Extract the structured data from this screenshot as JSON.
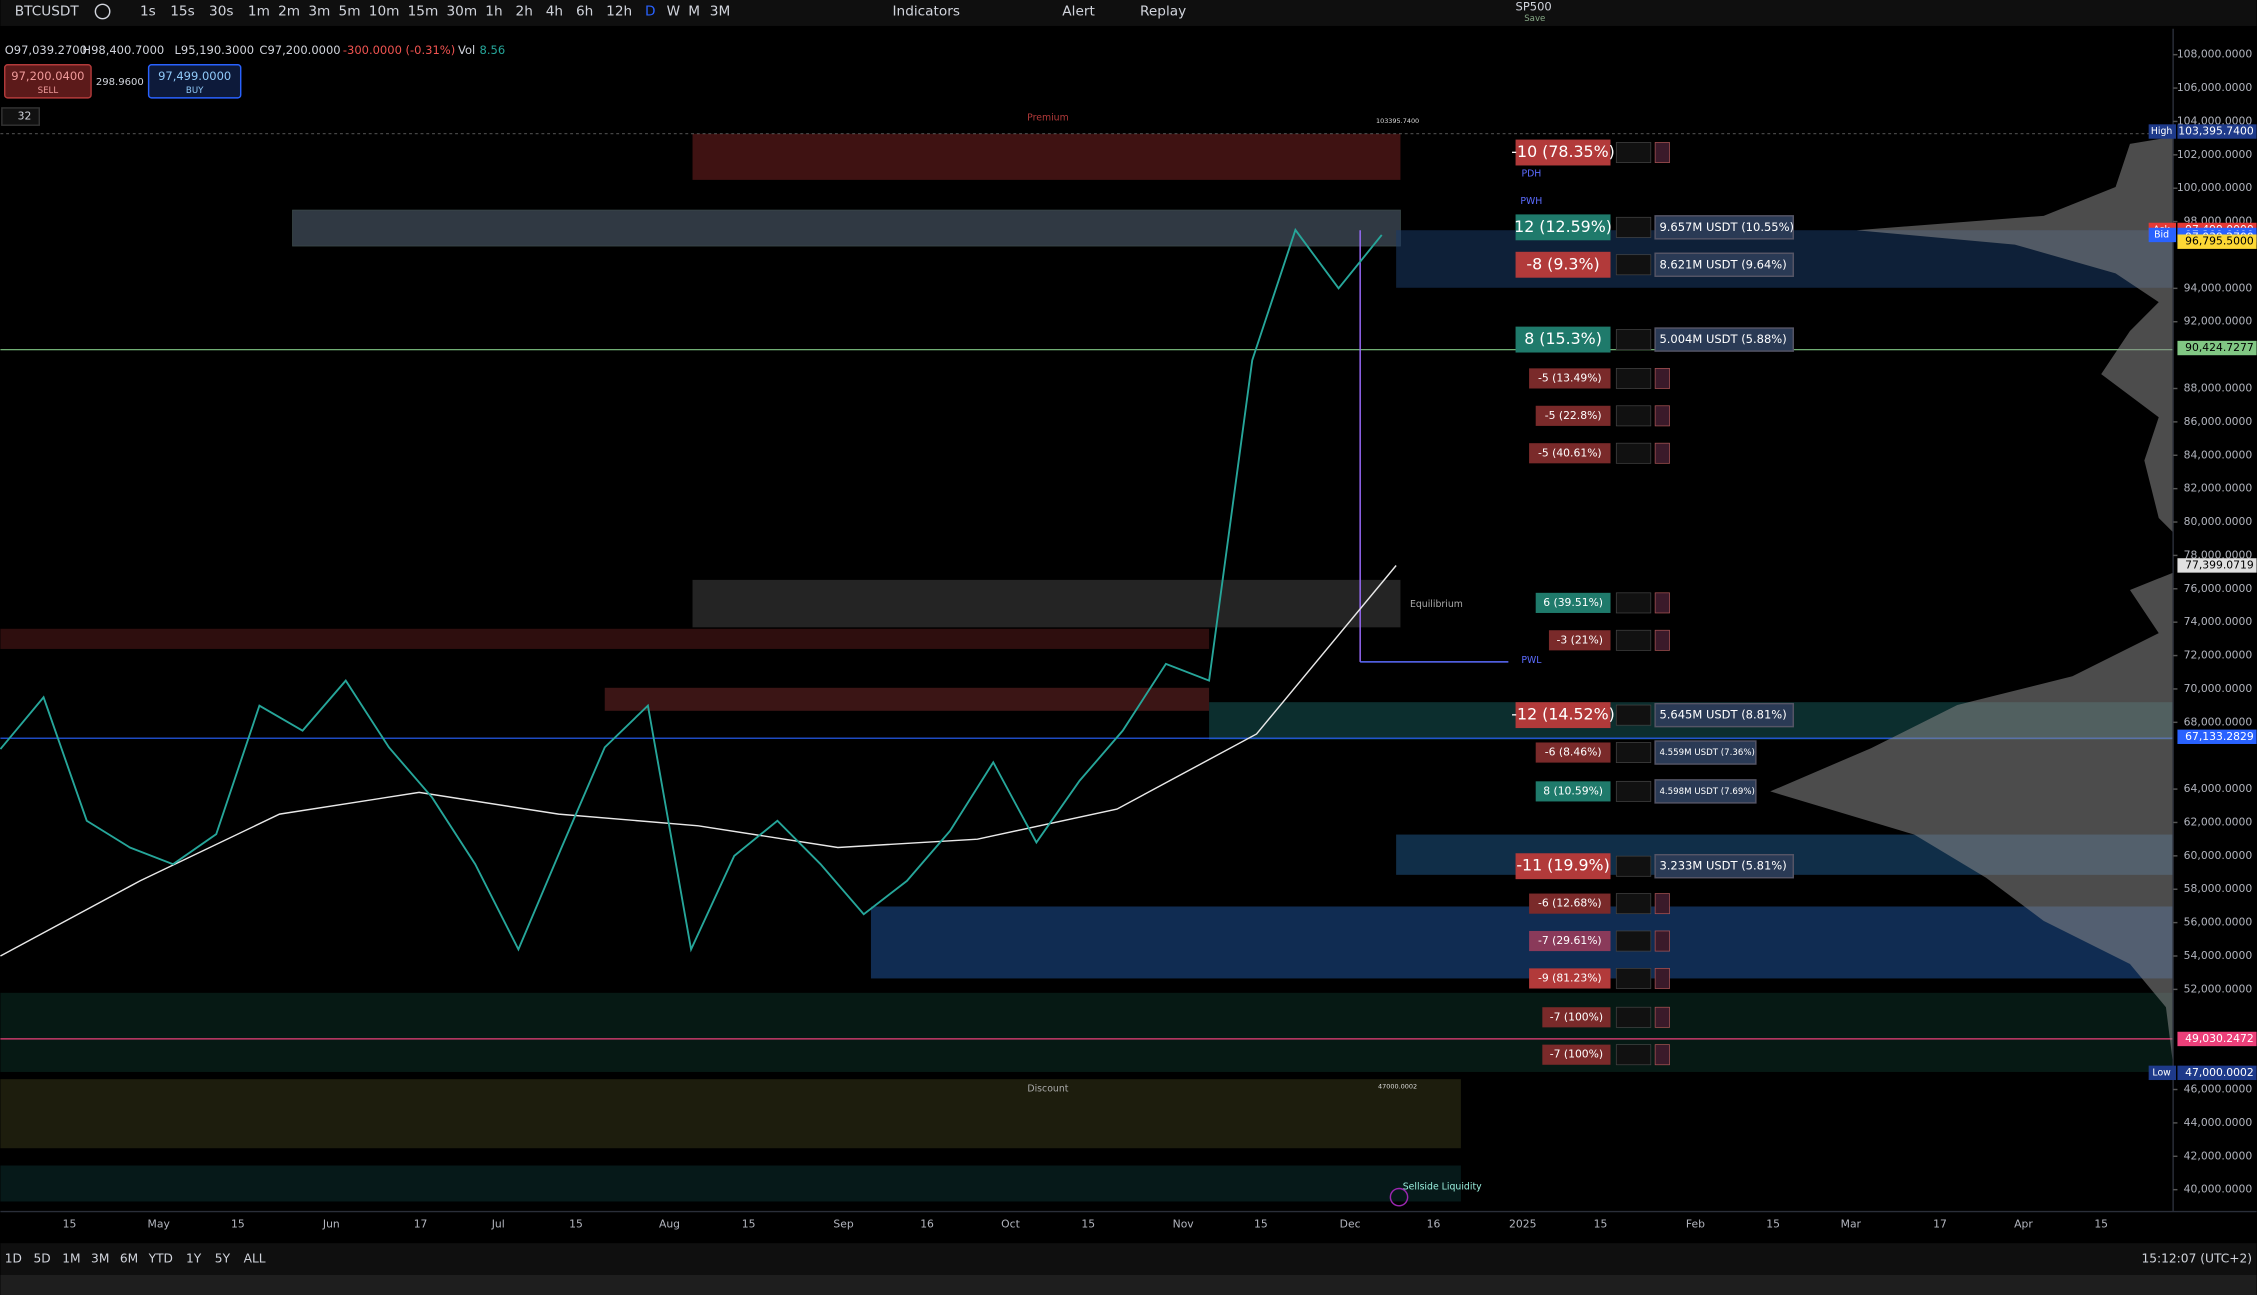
{
  "toolbar": {
    "symbol": "BTCUSDT",
    "intervals": [
      "1s",
      "15s",
      "30s",
      "1m",
      "2m",
      "3m",
      "5m",
      "10m",
      "15m",
      "30m",
      "1h",
      "2h",
      "4h",
      "6h",
      "12h",
      "D",
      "W",
      "M",
      "3M"
    ],
    "indicators": "Indicators",
    "alert": "Alert",
    "replay": "Replay",
    "compare_symbol": "SP500",
    "save": "Save"
  },
  "legend": {
    "open": "O97,039.2700",
    "high": "H98,400.7000",
    "low": "L95,190.3000",
    "close": "C97,200.0000",
    "change": "-300.0000 (-0.31%)",
    "volume_label": "Vol",
    "volume": "8.56"
  },
  "order": {
    "sell_price": "97,200.0400",
    "sell": "SELL",
    "spread": "298.9600",
    "buy_price": "97,499.0000",
    "buy": "BUY"
  },
  "indicator_count": "32",
  "chart_data": {
    "type": "line",
    "ylim": [
      39000,
      109000
    ],
    "yticks": [
      {
        "value": 108000,
        "label": "108,000.0000"
      },
      {
        "value": 106000,
        "label": "106,000.0000"
      },
      {
        "value": 104000,
        "label": "104,000.0000"
      },
      {
        "value": 102000,
        "label": "102,000.0000"
      },
      {
        "value": 100000,
        "label": "100,000.0000"
      },
      {
        "value": 98000,
        "label": "98,000.0000"
      },
      {
        "value": 94000,
        "label": "94,000.0000"
      },
      {
        "value": 92000,
        "label": "92,000.0000"
      },
      {
        "value": 88000,
        "label": "88,000.0000"
      },
      {
        "value": 86000,
        "label": "86,000.0000"
      },
      {
        "value": 84000,
        "label": "84,000.0000"
      },
      {
        "value": 82000,
        "label": "82,000.0000"
      },
      {
        "value": 80000,
        "label": "80,000.0000"
      },
      {
        "value": 78000,
        "label": "78,000.0000"
      },
      {
        "value": 76000,
        "label": "76,000.0000"
      },
      {
        "value": 74000,
        "label": "74,000.0000"
      },
      {
        "value": 72000,
        "label": "72,000.0000"
      },
      {
        "value": 70000,
        "label": "70,000.0000"
      },
      {
        "value": 68000,
        "label": "68,000.0000"
      },
      {
        "value": 64000,
        "label": "64,000.0000"
      },
      {
        "value": 62000,
        "label": "62,000.0000"
      },
      {
        "value": 60000,
        "label": "60,000.0000"
      },
      {
        "value": 58000,
        "label": "58,000.0000"
      },
      {
        "value": 56000,
        "label": "56,000.0000"
      },
      {
        "value": 54000,
        "label": "54,000.0000"
      },
      {
        "value": 52000,
        "label": "52,000.0000"
      },
      {
        "value": 46000,
        "label": "46,000.0000"
      },
      {
        "value": 44000,
        "label": "44,000.0000"
      },
      {
        "value": 42000,
        "label": "42,000.0000"
      },
      {
        "value": 40000,
        "label": "40,000.0000"
      }
    ],
    "series": [
      {
        "name": "BTCUSDT",
        "color": "#26a69a",
        "values": [
          66400,
          69500,
          62100,
          60500,
          59500,
          61300,
          69000,
          67500,
          70500,
          66500,
          63500,
          59500,
          54400,
          60500,
          66500,
          69000,
          54400,
          60000,
          62100,
          59500,
          56500,
          58500,
          61500,
          65600,
          60800,
          64500,
          67500,
          71500,
          70500,
          89700,
          97500,
          94000,
          97200
        ]
      }
    ],
    "overlays": [
      {
        "color": "#e8e8e8",
        "values": [
          54000,
          58500,
          62500,
          63800,
          62500,
          61800,
          60500,
          61000,
          62800,
          67300,
          77400
        ]
      }
    ],
    "price_labels": [
      {
        "value": 103395.74,
        "tag": "High",
        "label": "103,395.7400",
        "color": "#1e3a8a"
      },
      {
        "value": 97499,
        "tag": "Ask",
        "label": "97,499.0000",
        "color": "#e53935"
      },
      {
        "value": 97200.04,
        "tag": "Bid",
        "label": "97,200.0400",
        "color": "#2962ff"
      },
      {
        "value": 97039.27,
        "label": "97,039.2700",
        "color": "#2962ff"
      },
      {
        "value": 96795.5,
        "label": "96,795.5000",
        "color": "#fdd835"
      },
      {
        "value": 90424.7277,
        "label": "90,424.7277",
        "color": "#81c784"
      },
      {
        "value": 77399.0719,
        "label": "77,399.0719",
        "color": "#e0e0e0"
      },
      {
        "value": 67133.2829,
        "label": "67,133.2829",
        "color": "#2962ff"
      },
      {
        "value": 49030.2472,
        "label": "49,030.2472",
        "color": "#ec407a"
      },
      {
        "value": 47000.0002,
        "tag": "Low",
        "label": "47,000.0002",
        "color": "#1e3a8a"
      }
    ]
  },
  "time_axis": [
    "15",
    "May",
    "15",
    "Jun",
    "17",
    "Jul",
    "15",
    "Aug",
    "15",
    "Sep",
    "16",
    "Oct",
    "15",
    "Nov",
    "15",
    "Dec",
    "16",
    "2025",
    "15",
    "Feb",
    "15",
    "Mar",
    "17",
    "Apr",
    "15"
  ],
  "positions": [
    {
      "label": "-10 (78.35%)",
      "color": "#b23a3a",
      "big": true
    },
    {
      "label": "12 (12.59%)",
      "volume": "9.657M USDT (10.55%)",
      "color": "#1f7a6b",
      "big": true
    },
    {
      "label": "-8 (9.3%)",
      "volume": "8.621M USDT (9.64%)",
      "color": "#b23a3a",
      "big": true
    },
    {
      "label": "8 (15.3%)",
      "volume": "5.004M USDT (5.88%)",
      "color": "#1f7a6b",
      "big": true
    },
    {
      "label": "-5 (13.49%)",
      "color": "#7a2a2a"
    },
    {
      "label": "-5 (22.8%)",
      "color": "#7a2a2a"
    },
    {
      "label": "-5 (40.61%)",
      "color": "#7a2a2a"
    },
    {
      "label": "6 (39.51%)",
      "color": "#1f7a6b"
    },
    {
      "label": "-3 (21%)",
      "color": "#7a2a2a"
    },
    {
      "label": "-12 (14.52%)",
      "volume": "5.645M USDT (8.81%)",
      "color": "#b23a3a",
      "big": true
    },
    {
      "label": "-6 (8.46%)",
      "volume": "4.559M USDT (7.36%)",
      "color": "#7a2a2a"
    },
    {
      "label": "8 (10.59%)",
      "volume": "4.598M USDT (7.69%)",
      "color": "#1f7a6b"
    },
    {
      "label": "-11 (19.9%)",
      "volume": "3.233M USDT (5.81%)",
      "color": "#b23a3a",
      "big": true
    },
    {
      "label": "-6 (12.68%)",
      "color": "#7a2a2a"
    },
    {
      "label": "-7 (29.61%)",
      "color": "#8a3a5a"
    },
    {
      "label": "-9 (81.23%)",
      "color": "#b23a3a"
    },
    {
      "label": "-7 (100%)",
      "color": "#7a2a2a"
    },
    {
      "label": "-7 (100%)",
      "color": "#7a2a2a"
    }
  ],
  "annotations": [
    "Premium",
    "Equilibrium",
    "Discount",
    "PWH",
    "PDH",
    "PWL",
    "Sellside Liquidity",
    "103395.7400",
    "47000.0002"
  ],
  "bottom": {
    "ranges": [
      "1D",
      "5D",
      "1M",
      "3M",
      "6M",
      "YTD",
      "1Y",
      "5Y",
      "ALL"
    ],
    "clock": "15:12:07 (UTC+2)"
  }
}
